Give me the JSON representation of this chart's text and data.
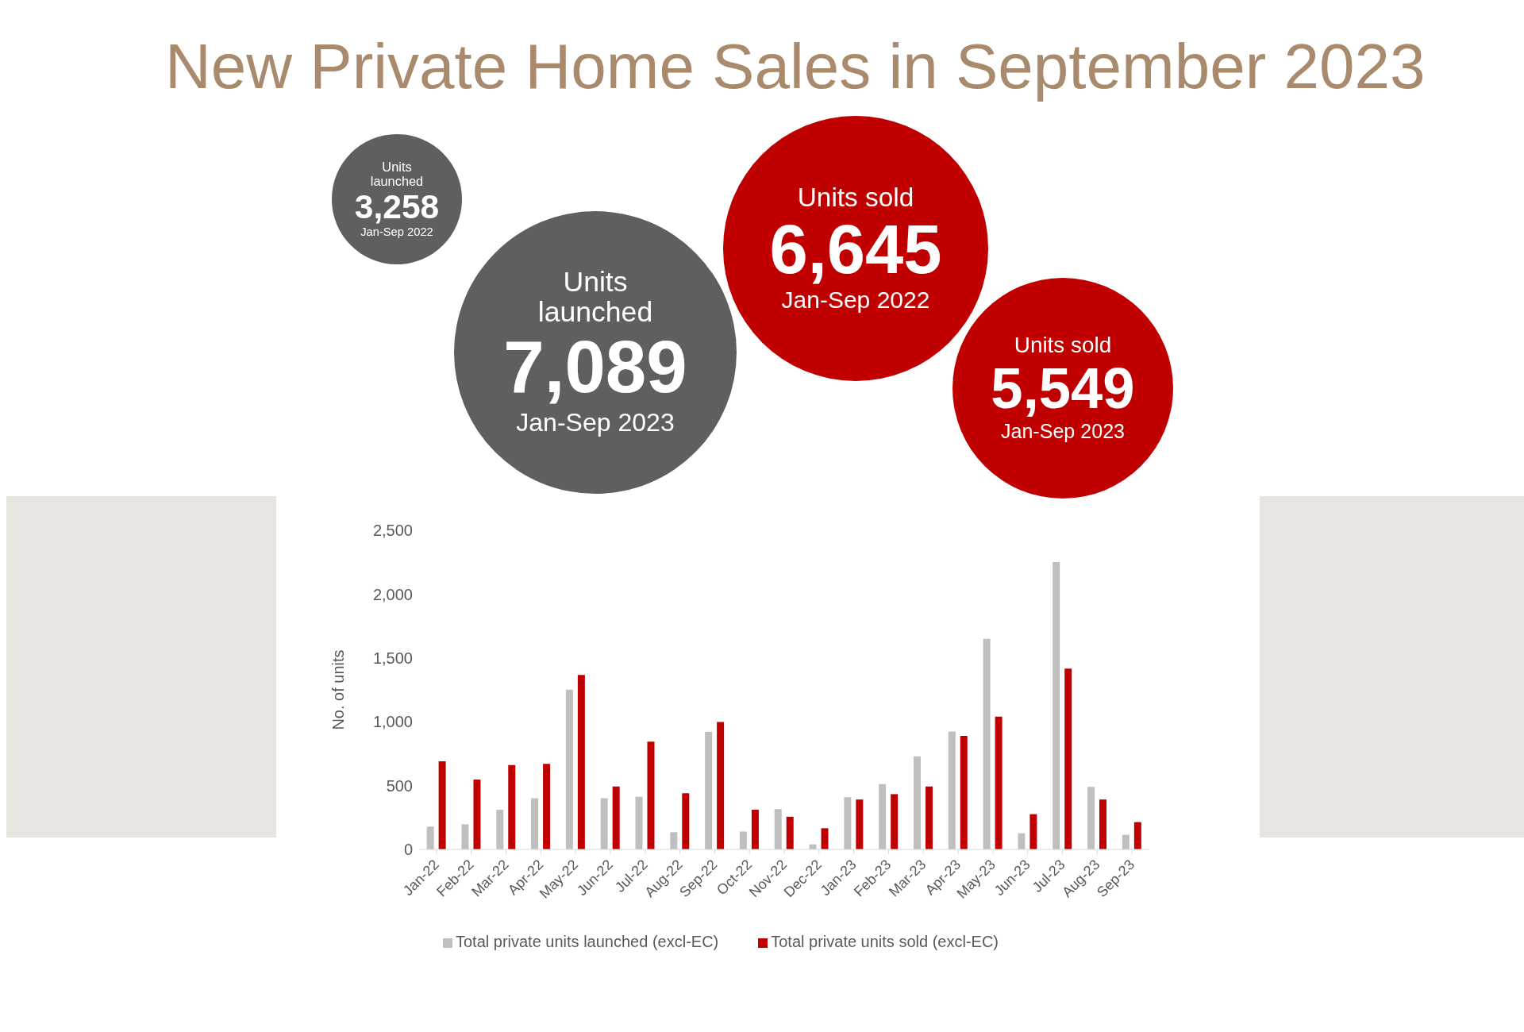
{
  "chart_data": [
    {
      "type": "other",
      "title": "New Private Home Sales in September 2023",
      "categories": [
        "Units launched",
        "Units launched",
        "Units sold",
        "Units sold"
      ],
      "values": [
        3258,
        7089,
        6645,
        5549
      ],
      "value_labels": [
        "3,258",
        "7,089",
        "6,645",
        "5,549"
      ],
      "annotations": [
        "Jan-Sep 2022",
        "Jan-Sep 2023",
        "Jan-Sep 2022",
        "Jan-Sep 2023"
      ],
      "colors": [
        "#5f5f5f",
        "#5f5f5f",
        "#c00000",
        "#c00000"
      ]
    },
    {
      "type": "bar",
      "ylabel": "No. of units",
      "categories": [
        "Jan-22",
        "Feb-22",
        "Mar-22",
        "Apr-22",
        "May-22",
        "Jun-22",
        "Jul-22",
        "Aug-22",
        "Sep-22",
        "Oct-22",
        "Nov-22",
        "Dec-22",
        "Jan-23",
        "Feb-23",
        "Mar-23",
        "Apr-23",
        "May-23",
        "Jun-23",
        "Jul-23",
        "Aug-23",
        "Sep-23"
      ],
      "series": [
        {
          "name": "Total private units launched (excl-EC)",
          "color": "#bfbfbf",
          "values": [
            179,
            197,
            310,
            401,
            1252,
            401,
            413,
            135,
            922,
            140,
            316,
            40,
            409,
            512,
            729,
            923,
            1650,
            126,
            2251,
            490,
            115
          ]
        },
        {
          "name": "Total private units sold (excl-EC)",
          "color": "#c00000",
          "values": [
            690,
            548,
            661,
            670,
            1367,
            493,
            844,
            440,
            998,
            311,
            256,
            166,
            391,
            433,
            493,
            890,
            1040,
            276,
            1416,
            391,
            214
          ]
        }
      ],
      "ylim": [
        0,
        2500
      ],
      "yticks": [
        0,
        500,
        {
          "value": 1000,
          "label": "1,000"
        },
        {
          "value": 1500,
          "label": "1,500"
        },
        {
          "value": 2000,
          "label": "2,000"
        },
        {
          "value": 2500,
          "label": "2,500"
        }
      ],
      "grid": false,
      "legend": "bottom"
    }
  ]
}
